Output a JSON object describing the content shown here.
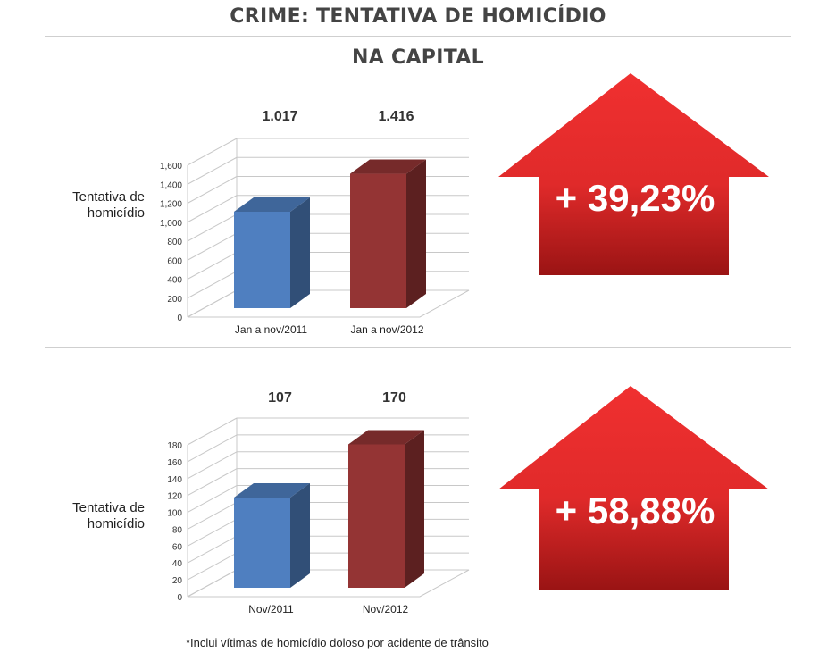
{
  "title": "CRIME: TENTATIVA DE HOMICÍDIO",
  "subtitle": "NA CAPITAL",
  "footnote": "*Inclui vítimas de homicídio doloso por acidente de trânsito",
  "colors": {
    "bar_2011": "#4f7fc0",
    "bar_2012": "#943434",
    "arrow": "#e02a2a",
    "text": "#222222"
  },
  "chart_data": [
    {
      "type": "bar",
      "ylabel": "Tentativa de homicídio",
      "categories": [
        "Jan a nov/2011",
        "Jan a nov/2012"
      ],
      "values": [
        1017,
        1416
      ],
      "value_labels": [
        "1.017",
        "1.416"
      ],
      "ylim": [
        0,
        1600
      ],
      "yticks": [
        "0",
        "200",
        "400",
        "600",
        "800",
        "1,000",
        "1,200",
        "1,400",
        "1,600"
      ],
      "grid": true,
      "change_label": "+ 39,23%"
    },
    {
      "type": "bar",
      "ylabel": "Tentativa de homicídio",
      "categories": [
        "Nov/2011",
        "Nov/2012"
      ],
      "values": [
        107,
        170
      ],
      "value_labels": [
        "107",
        "170"
      ],
      "ylim": [
        0,
        180
      ],
      "yticks": [
        "0",
        "20",
        "40",
        "60",
        "80",
        "100",
        "120",
        "140",
        "160",
        "180"
      ],
      "grid": true,
      "change_label": "+ 58,88%"
    }
  ]
}
